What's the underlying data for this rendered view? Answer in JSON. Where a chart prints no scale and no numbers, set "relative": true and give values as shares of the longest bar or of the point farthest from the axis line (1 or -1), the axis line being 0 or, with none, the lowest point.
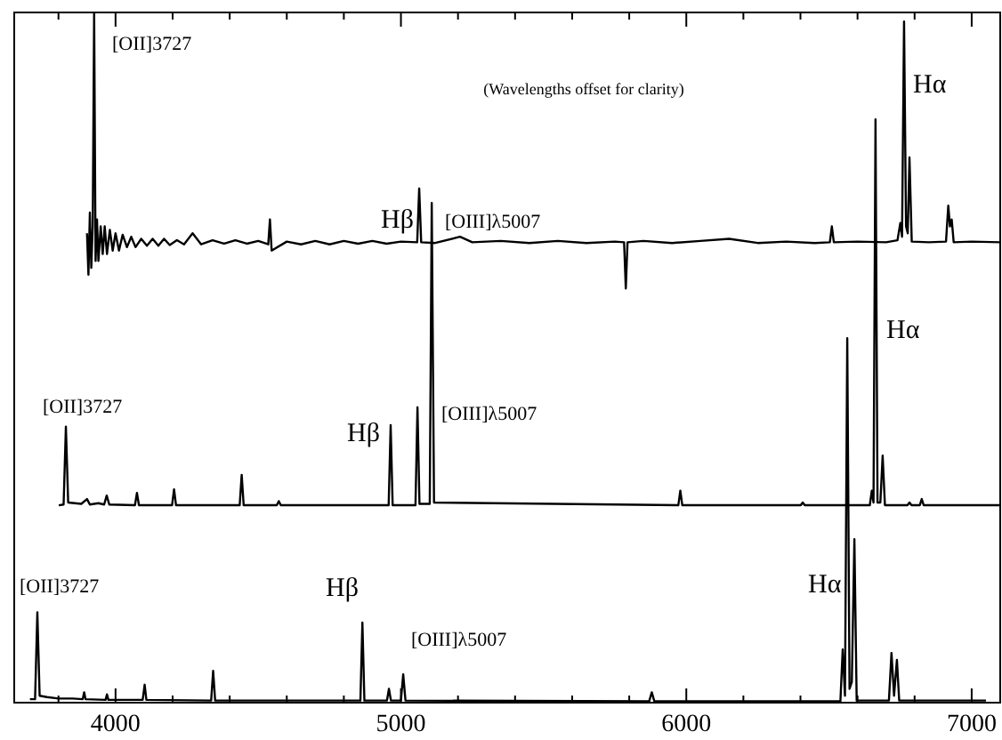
{
  "chart_data": {
    "type": "line",
    "relative": true,
    "xlim": [
      3645,
      7100
    ],
    "xticks": [
      {
        "value": 3800,
        "label": null
      },
      4000,
      {
        "value": 4200,
        "label": null
      },
      {
        "value": 4400,
        "label": null
      },
      {
        "value": 4600,
        "label": null
      },
      {
        "value": 4800,
        "label": null
      },
      5000,
      {
        "value": 5200,
        "label": null
      },
      {
        "value": 5400,
        "label": null
      },
      {
        "value": 5600,
        "label": null
      },
      {
        "value": 5800,
        "label": null
      },
      6000,
      {
        "value": 6200,
        "label": null
      },
      {
        "value": 6400,
        "label": null
      },
      {
        "value": 6600,
        "label": null
      },
      {
        "value": 6800,
        "label": null
      },
      7000
    ],
    "series": [
      {
        "color": "#000000",
        "x": [
          3700,
          3718,
          3726,
          3734,
          3760,
          3800,
          3850,
          3885,
          3890,
          3895,
          3965,
          3970,
          3975,
          4095,
          4102,
          4108,
          4335,
          4342,
          4349,
          4858,
          4865,
          4872,
          4951,
          4958,
          4965,
          5000,
          5008,
          5016,
          5870,
          5879,
          5888,
          6540,
          6548,
          6556,
          6564,
          6572,
          6580,
          6589,
          6597,
          6710,
          6719,
          6728,
          6738,
          6746,
          7050
        ],
        "values": [
          0.005,
          0.005,
          0.131,
          0.01,
          0.008,
          0.006,
          0.006,
          0.005,
          0.015,
          0.005,
          0.004,
          0.012,
          0.004,
          0.004,
          0.026,
          0.004,
          0.003,
          0.046,
          0.003,
          0.003,
          0.116,
          0.003,
          0.003,
          0.02,
          0.003,
          0.003,
          0.041,
          0.003,
          0.002,
          0.015,
          0.002,
          0.002,
          0.077,
          0.01,
          0.528,
          0.02,
          0.03,
          0.237,
          0.003,
          0.003,
          0.072,
          0.01,
          0.062,
          0.003,
          0.003
        ]
      },
      {
        "color": "#000000",
        "x": [
          3801,
          3818,
          3826,
          3834,
          3880,
          3900,
          3910,
          3940,
          3960,
          3969,
          3978,
          4068,
          4075,
          4082,
          4198,
          4205,
          4212,
          4435,
          4442,
          4449,
          4565,
          4572,
          4579,
          4957,
          4964,
          4971,
          5051,
          5058,
          5065,
          5101,
          5108,
          5116,
          5972,
          5979,
          5986,
          6401,
          6408,
          6415,
          6643,
          6650,
          6656,
          6663,
          6670,
          6680,
          6688,
          6696,
          6775,
          6782,
          6789,
          6818,
          6825,
          6832,
          7100
        ],
        "values": [
          0.286,
          0.287,
          0.4,
          0.29,
          0.288,
          0.295,
          0.287,
          0.289,
          0.287,
          0.3,
          0.287,
          0.286,
          0.304,
          0.286,
          0.286,
          0.309,
          0.286,
          0.286,
          0.33,
          0.286,
          0.286,
          0.292,
          0.286,
          0.286,
          0.402,
          0.286,
          0.286,
          0.428,
          0.288,
          0.288,
          0.724,
          0.29,
          0.286,
          0.307,
          0.286,
          0.286,
          0.29,
          0.286,
          0.286,
          0.307,
          0.29,
          0.845,
          0.29,
          0.29,
          0.358,
          0.286,
          0.286,
          0.29,
          0.286,
          0.286,
          0.295,
          0.286,
          0.286
        ]
      },
      {
        "color": "#000000",
        "x": [
          3900,
          3905,
          3910,
          3915,
          3920,
          3925,
          3930,
          3935,
          3940,
          3948,
          3955,
          3962,
          3970,
          3980,
          3990,
          4000,
          4012,
          4025,
          4040,
          4055,
          4070,
          4090,
          4110,
          4130,
          4150,
          4170,
          4190,
          4215,
          4240,
          4270,
          4300,
          4340,
          4380,
          4420,
          4460,
          4500,
          4535,
          4541,
          4547,
          4600,
          4650,
          4700,
          4750,
          4800,
          4850,
          4900,
          4950,
          5000,
          5057,
          5064,
          5071,
          5120,
          5207,
          5250,
          5350,
          5450,
          5550,
          5650,
          5750,
          5782,
          5788,
          5794,
          5850,
          5950,
          6050,
          6150,
          6250,
          6350,
          6450,
          6503,
          6510,
          6517,
          6600,
          6700,
          6740,
          6750,
          6756,
          6763,
          6770,
          6776,
          6782,
          6790,
          6850,
          6910,
          6918,
          6924,
          6930,
          6937,
          7000,
          7100
        ],
        "values": [
          0.68,
          0.62,
          0.71,
          0.63,
          0.69,
          1.0,
          0.64,
          0.7,
          0.64,
          0.69,
          0.65,
          0.69,
          0.65,
          0.685,
          0.655,
          0.68,
          0.655,
          0.678,
          0.66,
          0.675,
          0.66,
          0.672,
          0.662,
          0.672,
          0.662,
          0.672,
          0.663,
          0.67,
          0.664,
          0.68,
          0.664,
          0.67,
          0.665,
          0.67,
          0.665,
          0.669,
          0.664,
          0.7,
          0.655,
          0.668,
          0.664,
          0.669,
          0.664,
          0.669,
          0.665,
          0.669,
          0.665,
          0.668,
          0.667,
          0.745,
          0.667,
          0.666,
          0.675,
          0.667,
          0.669,
          0.666,
          0.669,
          0.666,
          0.668,
          0.667,
          0.6,
          0.667,
          0.669,
          0.666,
          0.669,
          0.672,
          0.666,
          0.668,
          0.666,
          0.667,
          0.69,
          0.667,
          0.668,
          0.667,
          0.67,
          0.695,
          0.675,
          0.987,
          0.69,
          0.68,
          0.79,
          0.668,
          0.667,
          0.668,
          0.72,
          0.69,
          0.7,
          0.667,
          0.668,
          0.667
        ]
      }
    ],
    "annotations": [
      "(Wavelengths offset for clarity)",
      "[OII]3727",
      "Hβ",
      "[OIII]λ5007",
      "Hα",
      "[OII]3727",
      "Hβ",
      "[OIII]λ5007",
      "Hα",
      "[OII]3727",
      "Hβ",
      "[OIII]λ5007",
      "Hα"
    ]
  }
}
